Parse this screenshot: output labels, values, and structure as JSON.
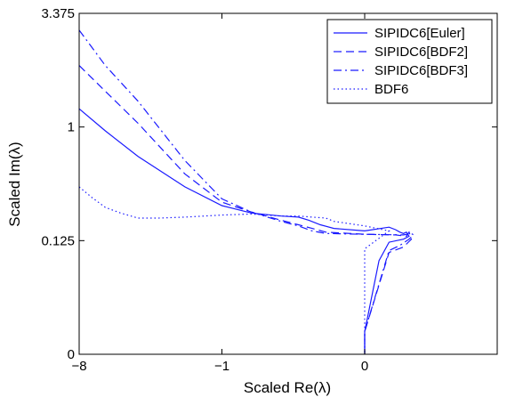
{
  "chart_data": {
    "type": "line",
    "xlabel": "Scaled Re(λ)",
    "ylabel": "Scaled Im(λ)",
    "x_ticks": [
      {
        "value": -8,
        "label": "−8"
      },
      {
        "value": -1,
        "label": "−1"
      },
      {
        "value": 0,
        "label": "0"
      }
    ],
    "y_ticks": [
      {
        "value": 0,
        "label": "0"
      },
      {
        "value": 0.125,
        "label": "0.125"
      },
      {
        "value": 1,
        "label": "1"
      },
      {
        "value": 3.375,
        "label": "3.375"
      }
    ],
    "x_scale": "cube-root",
    "y_scale": "cube-root",
    "xlim": [
      -8,
      0.8
    ],
    "ylim": [
      0,
      3.375
    ],
    "grid": false,
    "legend_position": "top-right",
    "color": "#1a1aff",
    "series": [
      {
        "name": "SIPIDC6[Euler]",
        "style": "solid",
        "points": [
          [
            -8,
            1.26
          ],
          [
            -6,
            0.95
          ],
          [
            -4,
            0.66
          ],
          [
            -2,
            0.4
          ],
          [
            -1,
            0.28
          ],
          [
            -0.5,
            0.24
          ],
          [
            -0.2,
            0.225
          ],
          [
            -0.1,
            0.22
          ],
          [
            -0.06,
            0.205
          ],
          [
            -0.03,
            0.185
          ],
          [
            -0.01,
            0.17
          ],
          [
            0,
            0.16
          ],
          [
            0.005,
            0.175
          ],
          [
            0.01,
            0.165
          ],
          [
            0.015,
            0.155
          ],
          [
            0.02,
            0.15
          ],
          [
            0.025,
            0.155
          ],
          [
            0.03,
            0.14
          ],
          [
            0.02,
            0.13
          ],
          [
            0.005,
            0.12
          ],
          [
            0.001,
            0.07
          ],
          [
            0,
            0.001
          ],
          [
            0,
            0
          ]
        ]
      },
      {
        "name": "SIPIDC6[BDF2]",
        "style": "dashed",
        "points": [
          [
            -8,
            2.05
          ],
          [
            -6,
            1.55
          ],
          [
            -4,
            1.05
          ],
          [
            -2,
            0.5
          ],
          [
            -1,
            0.3
          ],
          [
            -0.5,
            0.245
          ],
          [
            -0.2,
            0.205
          ],
          [
            -0.1,
            0.185
          ],
          [
            -0.05,
            0.17
          ],
          [
            -0.02,
            0.155
          ],
          [
            0,
            0.147
          ],
          [
            0.01,
            0.145
          ],
          [
            0.025,
            0.14
          ],
          [
            0.03,
            0.155
          ],
          [
            0.035,
            0.13
          ],
          [
            0.02,
            0.105
          ],
          [
            0.005,
            0.09
          ],
          [
            0,
            0.001
          ],
          [
            0,
            0
          ]
        ]
      },
      {
        "name": "SIPIDC6[BDF3]",
        "style": "dashdot",
        "points": [
          [
            -8,
            2.9
          ],
          [
            -6,
            2.05
          ],
          [
            -4,
            1.38
          ],
          [
            -2,
            0.62
          ],
          [
            -1,
            0.32
          ],
          [
            -0.5,
            0.245
          ],
          [
            -0.2,
            0.2
          ],
          [
            -0.1,
            0.18
          ],
          [
            -0.05,
            0.16
          ],
          [
            -0.02,
            0.15
          ],
          [
            0,
            0.147
          ],
          [
            0.02,
            0.145
          ],
          [
            0.035,
            0.15
          ],
          [
            0.04,
            0.145
          ],
          [
            0.03,
            0.13
          ],
          [
            0.015,
            0.11
          ],
          [
            0.005,
            0.095
          ],
          [
            0,
            0.001
          ],
          [
            0,
            0
          ]
        ]
      },
      {
        "name": "BDF6",
        "style": "dotted",
        "points": [
          [
            -8,
            0.4
          ],
          [
            -7,
            0.33
          ],
          [
            -6,
            0.27
          ],
          [
            -5,
            0.24
          ],
          [
            -4,
            0.215
          ],
          [
            -3,
            0.215
          ],
          [
            -2,
            0.22
          ],
          [
            -1,
            0.23
          ],
          [
            -0.5,
            0.235
          ],
          [
            -0.2,
            0.225
          ],
          [
            -0.1,
            0.225
          ],
          [
            -0.05,
            0.22
          ],
          [
            -0.02,
            0.215
          ],
          [
            -0.01,
            0.2
          ],
          [
            0,
            0.18
          ],
          [
            0.005,
            0.16
          ],
          [
            0,
            0.1
          ],
          [
            0,
            0.001
          ],
          [
            0,
            0
          ]
        ]
      }
    ]
  }
}
